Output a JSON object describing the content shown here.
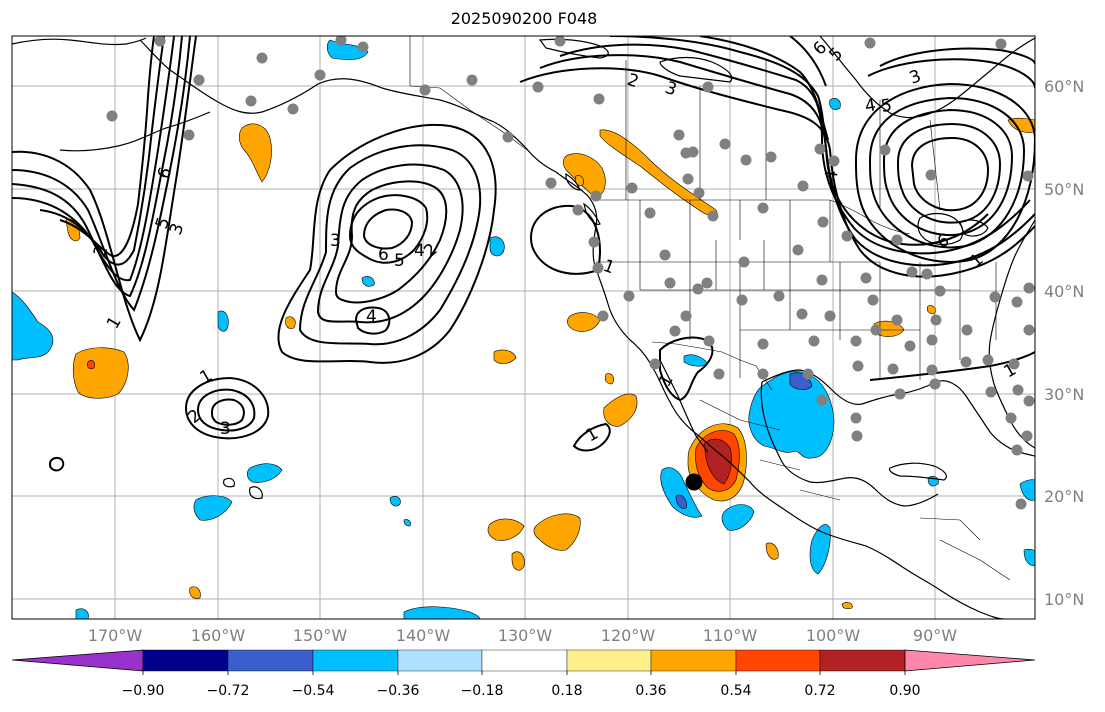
{
  "title": "2025090200 F048",
  "latitude_labels": [
    {
      "text": "60°N",
      "lat": 60
    },
    {
      "text": "50°N",
      "lat": 50
    },
    {
      "text": "40°N",
      "lat": 40
    },
    {
      "text": "30°N",
      "lat": 30
    },
    {
      "text": "20°N",
      "lat": 20
    },
    {
      "text": "10°N",
      "lat": 10
    }
  ],
  "longitude_labels": [
    {
      "text": "170°W",
      "lon": -170
    },
    {
      "text": "160°W",
      "lon": -160
    },
    {
      "text": "150°W",
      "lon": -150
    },
    {
      "text": "140°W",
      "lon": -140
    },
    {
      "text": "130°W",
      "lon": -130
    },
    {
      "text": "120°W",
      "lon": -120
    },
    {
      "text": "110°W",
      "lon": -110
    },
    {
      "text": "100°W",
      "lon": -100
    },
    {
      "text": "90°W",
      "lon": -90
    }
  ],
  "colorbar": {
    "tick_labels": [
      "−0.90",
      "−0.72",
      "−0.54",
      "−0.36",
      "−0.18",
      "0.18",
      "0.36",
      "0.54",
      "0.72",
      "0.90"
    ],
    "colors": [
      "#9932cc",
      "#00008b",
      "#3a5fcd",
      "#00bfff",
      "#b0e2ff",
      "#ffffff",
      "#fff08c",
      "#ffa500",
      "#ff4500",
      "#b22222",
      "#ff88aa"
    ]
  },
  "contour_labels": [
    "6",
    "5",
    "3",
    "2",
    "1",
    "3",
    "6",
    "5",
    "4",
    "2",
    "4",
    "1",
    "2",
    "3",
    "1",
    "1",
    "1",
    "2",
    "3",
    "4",
    "5",
    "6",
    "5",
    "3",
    "4",
    "6",
    "1",
    "1"
  ],
  "marker": {
    "name": "black-dot",
    "lon": -113,
    "lat": 21.3
  }
}
